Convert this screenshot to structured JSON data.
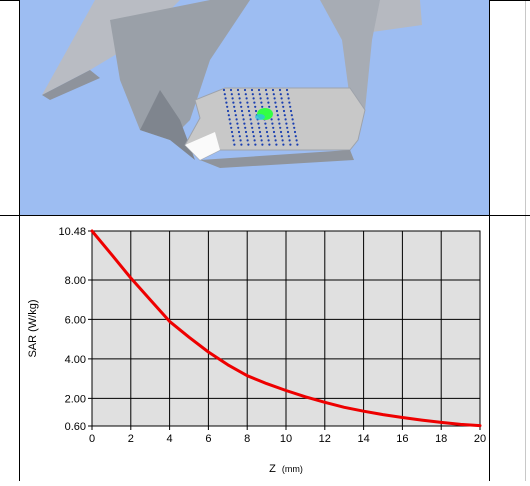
{
  "scene": {
    "background": "#9dbdf2",
    "phantom_color": "#c8c8c8",
    "grid_color": "#1a3fb0",
    "hotspot_color": "#33ff44"
  },
  "chart_data": {
    "type": "line",
    "xlabel": "Z",
    "xunit": "(mm)",
    "ylabel": "SAR (W/kg)",
    "xlim": [
      0,
      20
    ],
    "ylim": [
      0.6,
      10.48
    ],
    "xticks": [
      "0",
      "2",
      "4",
      "6",
      "8",
      "10",
      "12",
      "14",
      "16",
      "18",
      "20"
    ],
    "yticks": [
      {
        "value": 10.48,
        "label": "10.48"
      },
      {
        "value": 8.0,
        "label": "8.00"
      },
      {
        "value": 6.0,
        "label": "6.00"
      },
      {
        "value": 4.0,
        "label": "4.00"
      },
      {
        "value": 2.0,
        "label": "2.00"
      },
      {
        "value": 0.6,
        "label": "0.60"
      }
    ],
    "grid": true,
    "plot_background": "#e0e0e0",
    "series": [
      {
        "color": "#ee0000",
        "x": [
          0,
          1,
          2,
          3,
          4,
          5,
          6,
          7,
          8,
          9,
          10,
          11,
          12,
          13,
          14,
          15,
          16,
          17,
          18,
          19,
          20
        ],
        "y": [
          10.48,
          9.3,
          8.1,
          7.0,
          5.9,
          5.1,
          4.35,
          3.7,
          3.15,
          2.75,
          2.4,
          2.08,
          1.8,
          1.55,
          1.35,
          1.18,
          1.03,
          0.9,
          0.78,
          0.68,
          0.62
        ]
      }
    ]
  }
}
